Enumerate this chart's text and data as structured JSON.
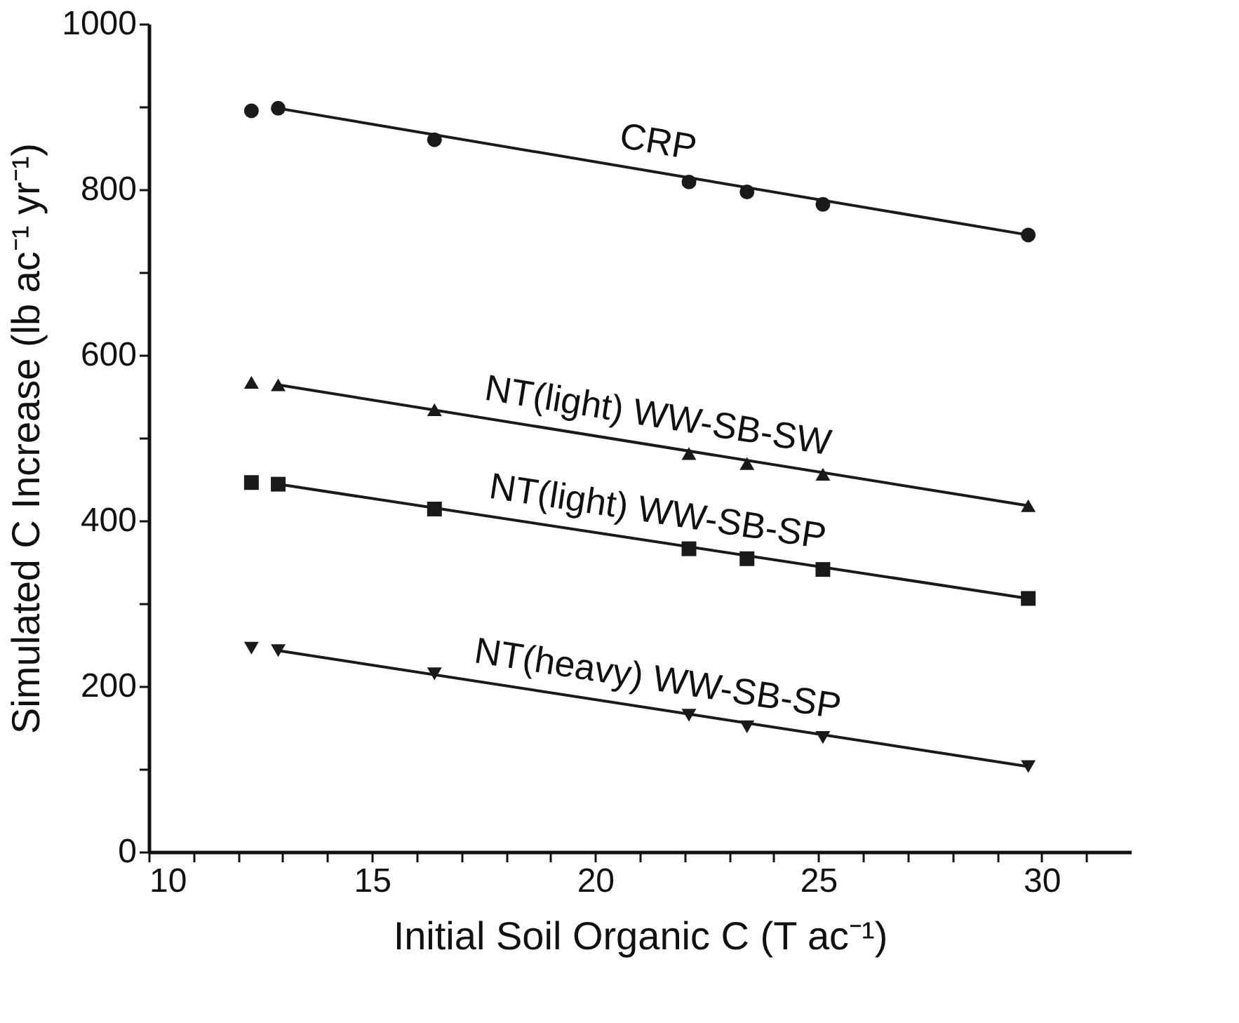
{
  "chart_data": {
    "type": "scatter",
    "xlabel": "Initial Soil Organic C (T ac⁻¹)",
    "ylabel": "Simulated C Increase (lb ac⁻¹ yr⁻¹)",
    "xlim": [
      10,
      32
    ],
    "ylim": [
      0,
      1000
    ],
    "xticks": [
      10,
      {
        "value": 11,
        "label": null
      },
      {
        "value": 12,
        "label": null
      },
      {
        "value": 13,
        "label": null
      },
      {
        "value": 14,
        "label": null
      },
      15,
      {
        "value": 16,
        "label": null
      },
      {
        "value": 17,
        "label": null
      },
      {
        "value": 18,
        "label": null
      },
      {
        "value": 19,
        "label": null
      },
      20,
      {
        "value": 21,
        "label": null
      },
      {
        "value": 22,
        "label": null
      },
      {
        "value": 23,
        "label": null
      },
      {
        "value": 24,
        "label": null
      },
      25,
      {
        "value": 26,
        "label": null
      },
      {
        "value": 27,
        "label": null
      },
      {
        "value": 28,
        "label": null
      },
      {
        "value": 29,
        "label": null
      },
      30,
      {
        "value": 31,
        "label": null
      }
    ],
    "yticks": [
      0,
      {
        "value": 100,
        "label": null
      },
      200,
      {
        "value": 300,
        "label": null
      },
      400,
      {
        "value": 500,
        "label": null
      },
      600,
      {
        "value": 700,
        "label": null
      },
      800,
      {
        "value": 900,
        "label": null
      },
      1000
    ],
    "grid": false,
    "series": [
      {
        "marker": "circle",
        "color": "#1a1a1a",
        "x": [
          12.3,
          12.9,
          16.4,
          22.1,
          23.4,
          25.1,
          29.7
        ],
        "values": [
          895,
          898,
          860,
          809,
          797,
          782,
          745
        ]
      },
      {
        "marker": "triangle",
        "color": "#1a1a1a",
        "x": [
          12.3,
          12.9,
          16.4,
          22.1,
          23.4,
          25.1,
          29.7
        ],
        "values": [
          567,
          564,
          534,
          481,
          469,
          456,
          418
        ]
      },
      {
        "marker": "square",
        "color": "#1a1a1a",
        "x": [
          12.3,
          12.9,
          16.4,
          22.1,
          23.4,
          25.1,
          29.7
        ],
        "values": [
          446,
          444,
          414,
          366,
          354,
          341,
          306
        ]
      },
      {
        "marker": "triangle-down",
        "color": "#1a1a1a",
        "x": [
          12.3,
          12.9,
          16.4,
          22.1,
          23.4,
          25.1,
          29.7
        ],
        "values": [
          246,
          243,
          215,
          165,
          151,
          138,
          103
        ]
      },
      {
        "type": "line",
        "marker": "none",
        "line_style": "solid",
        "color": "#1a1a1a",
        "x": [
          12.9,
          29.7
        ],
        "values": [
          898,
          745
        ]
      },
      {
        "type": "line",
        "marker": "none",
        "line_style": "solid",
        "color": "#1a1a1a",
        "x": [
          12.9,
          29.7
        ],
        "values": [
          564,
          418
        ]
      },
      {
        "type": "line",
        "marker": "none",
        "line_style": "solid",
        "color": "#1a1a1a",
        "x": [
          12.9,
          29.7
        ],
        "values": [
          444,
          306
        ]
      },
      {
        "type": "line",
        "marker": "none",
        "line_style": "solid",
        "color": "#1a1a1a",
        "x": [
          12.9,
          29.7
        ],
        "values": [
          243,
          103
        ]
      }
    ],
    "annotations": [
      "CRP",
      "NT(light) WW-SB-SW",
      "NT(light) WW-SB-SP",
      "NT(heavy) WW-SB-SP"
    ]
  }
}
